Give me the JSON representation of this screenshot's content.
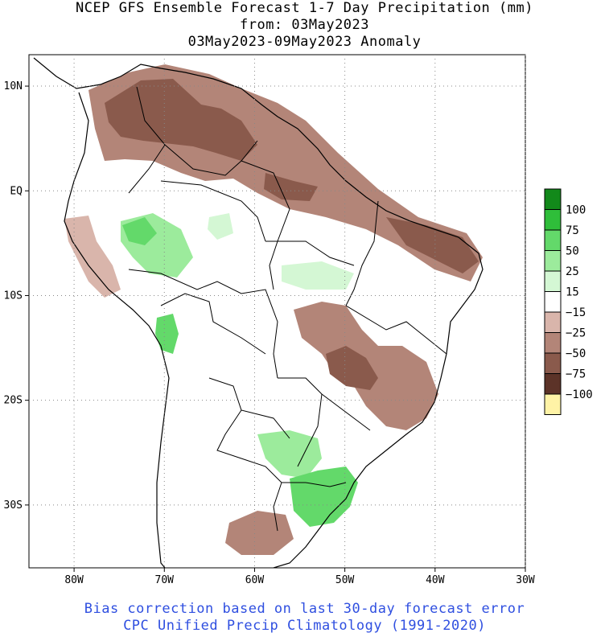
{
  "title": {
    "line1": "NCEP GFS Ensemble Forecast 1-7 Day Precipitation (mm)",
    "line2": "from: 03May2023",
    "line3": "03May2023-09May2023 Anomaly"
  },
  "footer": {
    "line1": "Bias correction based on last 30-day forecast error",
    "line2": "CPC Unified Precip Climatology (1991-2020)"
  },
  "map": {
    "lon_range": [
      -85,
      -30
    ],
    "lat_range": [
      -36,
      13
    ],
    "lon_ticks": [
      {
        "value": -80,
        "label": "80W"
      },
      {
        "value": -70,
        "label": "70W"
      },
      {
        "value": -60,
        "label": "60W"
      },
      {
        "value": -50,
        "label": "50W"
      },
      {
        "value": -40,
        "label": "40W"
      },
      {
        "value": -30,
        "label": "30W"
      }
    ],
    "lat_ticks": [
      {
        "value": 10,
        "label": "10N"
      },
      {
        "value": 0,
        "label": "EQ"
      },
      {
        "value": -10,
        "label": "10S"
      },
      {
        "value": -20,
        "label": "20S"
      },
      {
        "value": -30,
        "label": "30S"
      }
    ],
    "grid": "dotted"
  },
  "legend": {
    "bins": [
      {
        "color": "#12891a"
      },
      {
        "color": "#2fbe3a"
      },
      {
        "color": "#63d96a"
      },
      {
        "color": "#9ceb9c"
      },
      {
        "color": "#d4f7d4"
      },
      {
        "color": "#ffffff"
      },
      {
        "color": "#d9b5ab"
      },
      {
        "color": "#b38578"
      },
      {
        "color": "#8a5a4c"
      },
      {
        "color": "#5c3328"
      },
      {
        "color": "#fff3a6"
      }
    ],
    "labels": [
      "100",
      "75",
      "50",
      "25",
      "15",
      "−15",
      "−25",
      "−50",
      "−75",
      "−100"
    ]
  },
  "colors": {
    "dry_light": "#d9b5ab",
    "dry_mid": "#b38578",
    "dry_dark": "#8a5a4c",
    "wet_pale": "#d4f7d4",
    "wet_light": "#9ceb9c",
    "wet_mid": "#63d96a"
  }
}
